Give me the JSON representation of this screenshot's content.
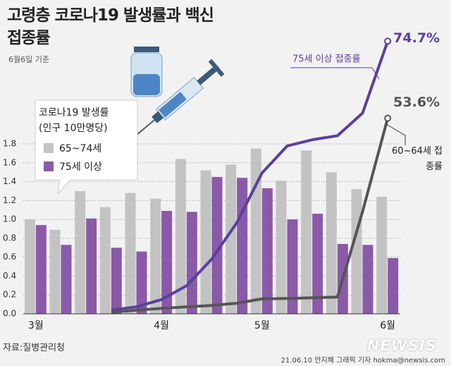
{
  "chart_data": {
    "type": "bar",
    "title": "고령층 코로나19 발생률과 백신접종률",
    "subtitle": "6월6일 기준",
    "legend_title": [
      "코로나19 발생률",
      "(인구 10만명당)"
    ],
    "categories": [
      "3월",
      null,
      null,
      null,
      null,
      "4월",
      null,
      null,
      null,
      "5월",
      null,
      null,
      null,
      null,
      "6월"
    ],
    "series": [
      {
        "name": "65~74세",
        "color": "#c3c3c3",
        "values": [
          1.0,
          0.89,
          1.3,
          1.13,
          1.28,
          1.22,
          1.64,
          1.52,
          1.58,
          1.75,
          1.41,
          1.73,
          1.5,
          1.32,
          1.24
        ]
      },
      {
        "name": "75세 이상",
        "color": "#8a5aa8",
        "values": [
          0.94,
          0.73,
          1.01,
          0.7,
          0.66,
          1.09,
          1.08,
          1.45,
          1.44,
          1.33,
          1.0,
          1.06,
          0.74,
          0.73,
          0.59
        ]
      },
      {
        "name": "75세 이상 접종률",
        "type": "line",
        "axis": "y2",
        "color": "#5a3f9e",
        "values": [
          null,
          null,
          null,
          1.0,
          1.9,
          3.9,
          7.7,
          15,
          25,
          38.6,
          46,
          47.7,
          48.8,
          55,
          74.7
        ],
        "value_labels": [
          null,
          null,
          null,
          null,
          null,
          null,
          null,
          null,
          null,
          null,
          null,
          null,
          null,
          null,
          "74.7%"
        ]
      },
      {
        "name": "60~64세 접종률",
        "type": "line",
        "axis": "y2",
        "color": "#555555",
        "values": [
          null,
          null,
          null,
          0.4,
          1.0,
          1.5,
          1.9,
          2.3,
          2.9,
          4.1,
          4.2,
          4.4,
          4.6,
          28,
          53.6
        ],
        "value_labels": [
          null,
          null,
          null,
          null,
          null,
          null,
          null,
          null,
          null,
          null,
          null,
          null,
          null,
          null,
          "53.6%"
        ]
      }
    ],
    "ylim": [
      0,
      1.8
    ],
    "yticks": [
      {
        "value": 0,
        "label": "0.0"
      },
      0.2,
      0.4,
      0.6,
      0.8,
      {
        "value": 1,
        "label": "1.0"
      },
      1.2,
      1.4,
      1.6,
      1.8
    ],
    "y2lim": [
      0,
      80
    ],
    "grid": true,
    "source": "자료:질병관리청",
    "credit": "21.06.10 안지혜 그래픽 기자 hokma@newsis.com",
    "logo": "NEWSIS"
  }
}
